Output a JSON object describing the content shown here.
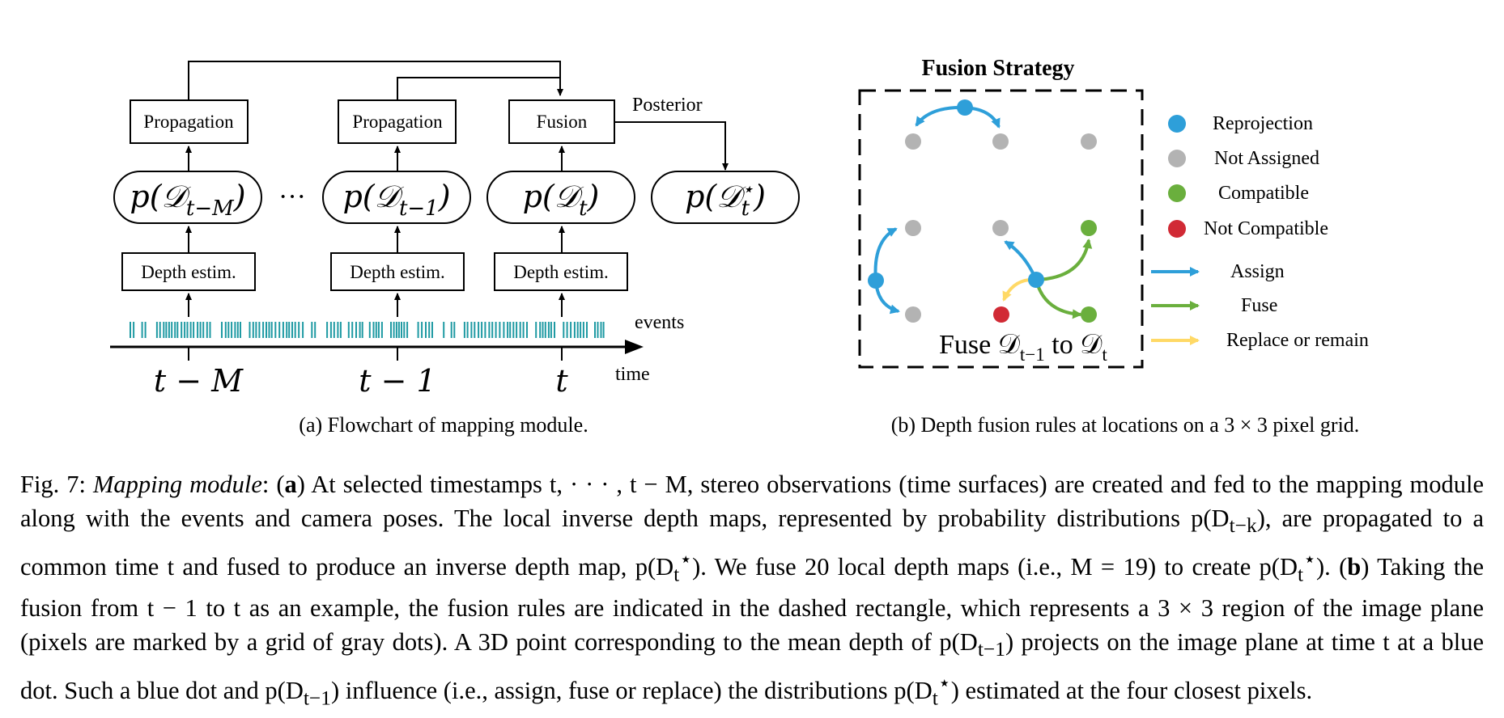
{
  "figure": {
    "left_panel": {
      "propagation_label": "Propagation",
      "fusion_label": "Fusion",
      "posterior_label": "Posterior",
      "depth_estim_label": "Depth estim.",
      "dist_t_minus_M": "p(D",
      "sub_t_minus_M": "t−M",
      "sub_t_minus_1": "t−1",
      "sub_t": "t",
      "star": "⋆",
      "ellipsis": "···",
      "events_label": "events",
      "time_label": "time",
      "tick_t_minus_M": "t − M",
      "tick_t_minus_1": "t − 1",
      "tick_t": "t",
      "subcaption": "(a) Flowchart of mapping module."
    },
    "right_panel": {
      "title": "Fusion Strategy",
      "legend": {
        "reprojection": "Reprojection",
        "not_assigned": "Not Assigned",
        "compatible": "Compatible",
        "not_compatible": "Not Compatible",
        "assign": "Assign",
        "fuse": "Fuse",
        "replace": "Replace or remain"
      },
      "fuse_text_prefix": "Fuse ",
      "fuse_text_mid": " to ",
      "subcaption": "(b) Depth fusion rules at locations on a 3 × 3 pixel grid.",
      "colors": {
        "reprojection": "#2e9fd9",
        "not_assigned": "#b3b3b3",
        "compatible": "#6aaf3d",
        "not_compatible": "#d12a35",
        "replace": "#ffd966"
      }
    }
  },
  "caption": {
    "fig_label": "Fig. 7:",
    "title": "Mapping module",
    "part_a_label": "a",
    "part_b_label": "b",
    "text_a1": " At selected timestamps t, · · · , t − M, stereo observations (time surfaces) are created and fed to the mapping module along with the events and camera poses. The local inverse depth maps, represented by probability distributions p(D",
    "text_a2": "), are propagated to a common time t and fused to produce an inverse depth map, p(D",
    "text_a3": "). We fuse 20 local depth maps (i.e., M = 19) to create p(D",
    "text_a4": ").",
    "text_b1": " Taking the fusion from t − 1 to t as an example, the fusion rules are indicated in the dashed rectangle, which represents a 3 × 3 region of the image plane (pixels are marked by a grid of gray dots). A 3D point corresponding to the mean depth of p(D",
    "text_b2": ") projects on the image plane at time t at a blue dot. Such a blue dot and p(D",
    "text_b3": ") influence (i.e., assign, fuse or replace) the distributions p(D",
    "text_b4": ") estimated at the four closest pixels.",
    "sub_t_minus_k": "t−k",
    "sub_t_minus_1": "t−1",
    "sub_t": "t",
    "star": "⋆"
  }
}
